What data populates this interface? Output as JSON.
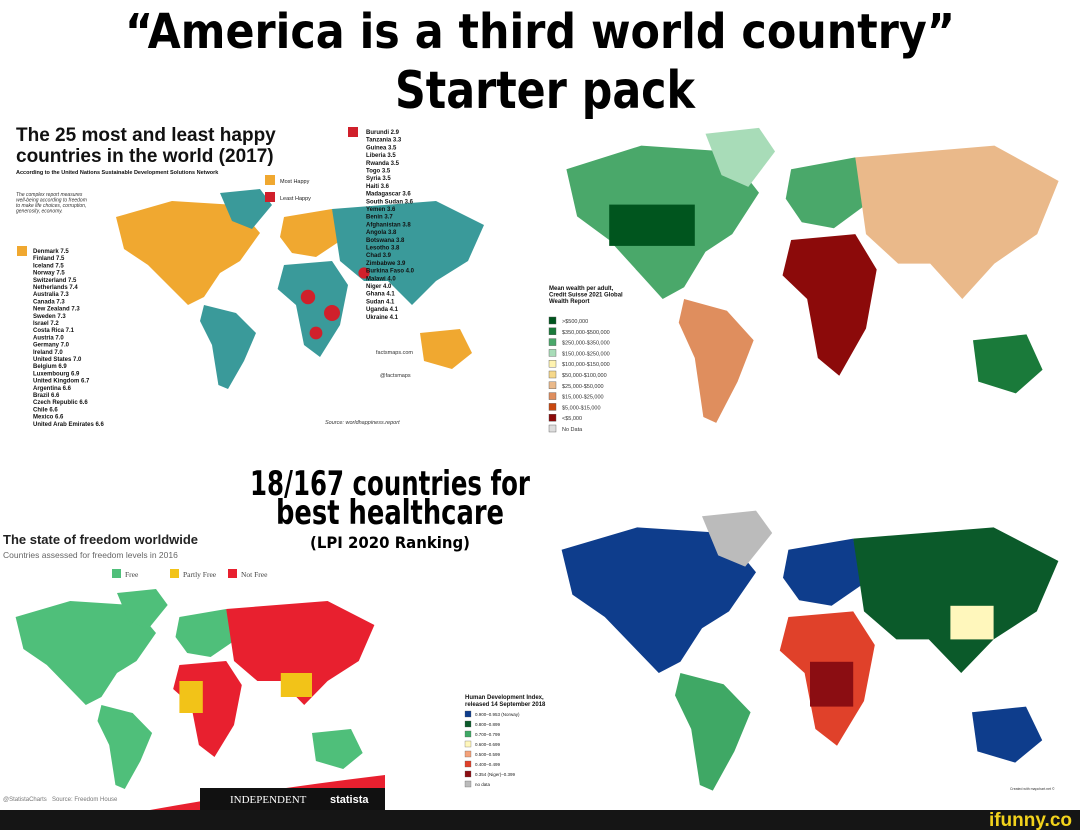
{
  "header": {
    "title": "“America is a third world country”",
    "subtitle": "Starter pack"
  },
  "happy": {
    "title": [
      "The 25 most and least happy",
      "countries in the world (2017)"
    ],
    "source_line": "According to the United Nations Sustainable Development Solutions Network",
    "note": [
      "The complex report measures",
      "well-being according to freedom",
      "to make life choices, corruption,",
      "generosity, economy."
    ],
    "legend": [
      {
        "label": "Most Happy",
        "color": "#f0a830"
      },
      {
        "label": "Least Happy",
        "color": "#d0202b"
      }
    ],
    "happiest": [
      "Denmark 7.5",
      "Finland 7.5",
      "Iceland 7.5",
      "Norway 7.5",
      "Switzerland 7.5",
      "Netherlands 7.4",
      "Australia 7.3",
      "Canada 7.3",
      "New Zealand 7.3",
      "Sweden 7.3",
      "Israel 7.2",
      "Costa Rica 7.1",
      "Austria 7.0",
      "Germany 7.0",
      "Ireland 7.0",
      "United States 7.0",
      "Belgium 6.9",
      "Luxembourg 6.9",
      "United Kingdom 6.7",
      "Argentina 6.6",
      "Brazil 6.6",
      "Czech Republic 6.6",
      "Chile 6.6",
      "Mexico 6.6",
      "United Arab Emirates 6.6"
    ],
    "least": [
      "Burundi 2.9",
      "Tanzania 3.3",
      "Guinea 3.5",
      "Liberia 3.5",
      "Rwanda 3.5",
      "Togo 3.5",
      "Syria 3.5",
      "Haiti 3.6",
      "Madagascar 3.6",
      "South Sudan 3.6",
      "Yemen 3.6",
      "Benin 3.7",
      "Afghanistan 3.8",
      "Angola 3.8",
      "Botswana 3.8",
      "Lesotho 3.8",
      "Chad 3.9",
      "Zimbabwe 3.9",
      "Burkina Faso 4.0",
      "Malawi 4.0",
      "Niger 4.0",
      "Ghana 4.1",
      "Sudan 4.1",
      "Uganda 4.1",
      "Ukraine 4.1"
    ],
    "site": "factsmaps.com",
    "handle": "@factsmaps",
    "source": "Source: worldhappiness.report"
  },
  "wealth": {
    "title": [
      "Mean wealth per adult,",
      "Credit Suisse 2021 Global",
      "Wealth Report"
    ],
    "legend": [
      {
        "label": ">$500,000",
        "color": "#00551e"
      },
      {
        "label": "$350,000-$500,000",
        "color": "#1a7a3a"
      },
      {
        "label": "$250,000-$350,000",
        "color": "#4aa86a"
      },
      {
        "label": "$150,000-$250,000",
        "color": "#a8dcb8"
      },
      {
        "label": "$100,000-$150,000",
        "color": "#fff3b0"
      },
      {
        "label": "$50,000-$100,000",
        "color": "#f6d88a"
      },
      {
        "label": "$25,000-$50,000",
        "color": "#eab98a"
      },
      {
        "label": "$15,000-$25,000",
        "color": "#df8e5e"
      },
      {
        "label": "$5,000-$15,000",
        "color": "#c9480f"
      },
      {
        "label": "<$5,000",
        "color": "#8c0a0a"
      },
      {
        "label": "No Data",
        "color": "#dddddd"
      }
    ]
  },
  "healthcare": {
    "line1": "18/167 countries for",
    "line2": "best healthcare",
    "line3": "(LPI 2020 Ranking)"
  },
  "freedom": {
    "title": "The state of freedom worldwide",
    "subtitle": "Countries assessed for freedom levels in 2016",
    "legend": [
      {
        "label": "Free",
        "color": "#4fbf7a"
      },
      {
        "label": "Partly Free",
        "color": "#f2c318"
      },
      {
        "label": "Not Free",
        "color": "#e8202f"
      }
    ],
    "handle": "@StatistaCharts",
    "source": "Source: Freedom House",
    "brand1": "INDEPENDENT",
    "brand2": "statista"
  },
  "hdi": {
    "title": [
      "Human Development Index,",
      "released 14 September 2018"
    ],
    "legend": [
      {
        "label": "0.900–0.953 (Norway)",
        "color": "#0e3d8c"
      },
      {
        "label": "0.800–0.899",
        "color": "#0b5a2a"
      },
      {
        "label": "0.700–0.799",
        "color": "#3fa865"
      },
      {
        "label": "0.600–0.699",
        "color": "#fff7bc"
      },
      {
        "label": "0.500–0.599",
        "color": "#f4a27a"
      },
      {
        "label": "0.400–0.499",
        "color": "#e0412a"
      },
      {
        "label": "0.354 (Niger)–0.399",
        "color": "#8b0d12"
      },
      {
        "label": "no data",
        "color": "#bbbbbb"
      }
    ],
    "credit": "Created with mapchart.net ©"
  },
  "footer": {
    "brand": "ifunny.co"
  }
}
